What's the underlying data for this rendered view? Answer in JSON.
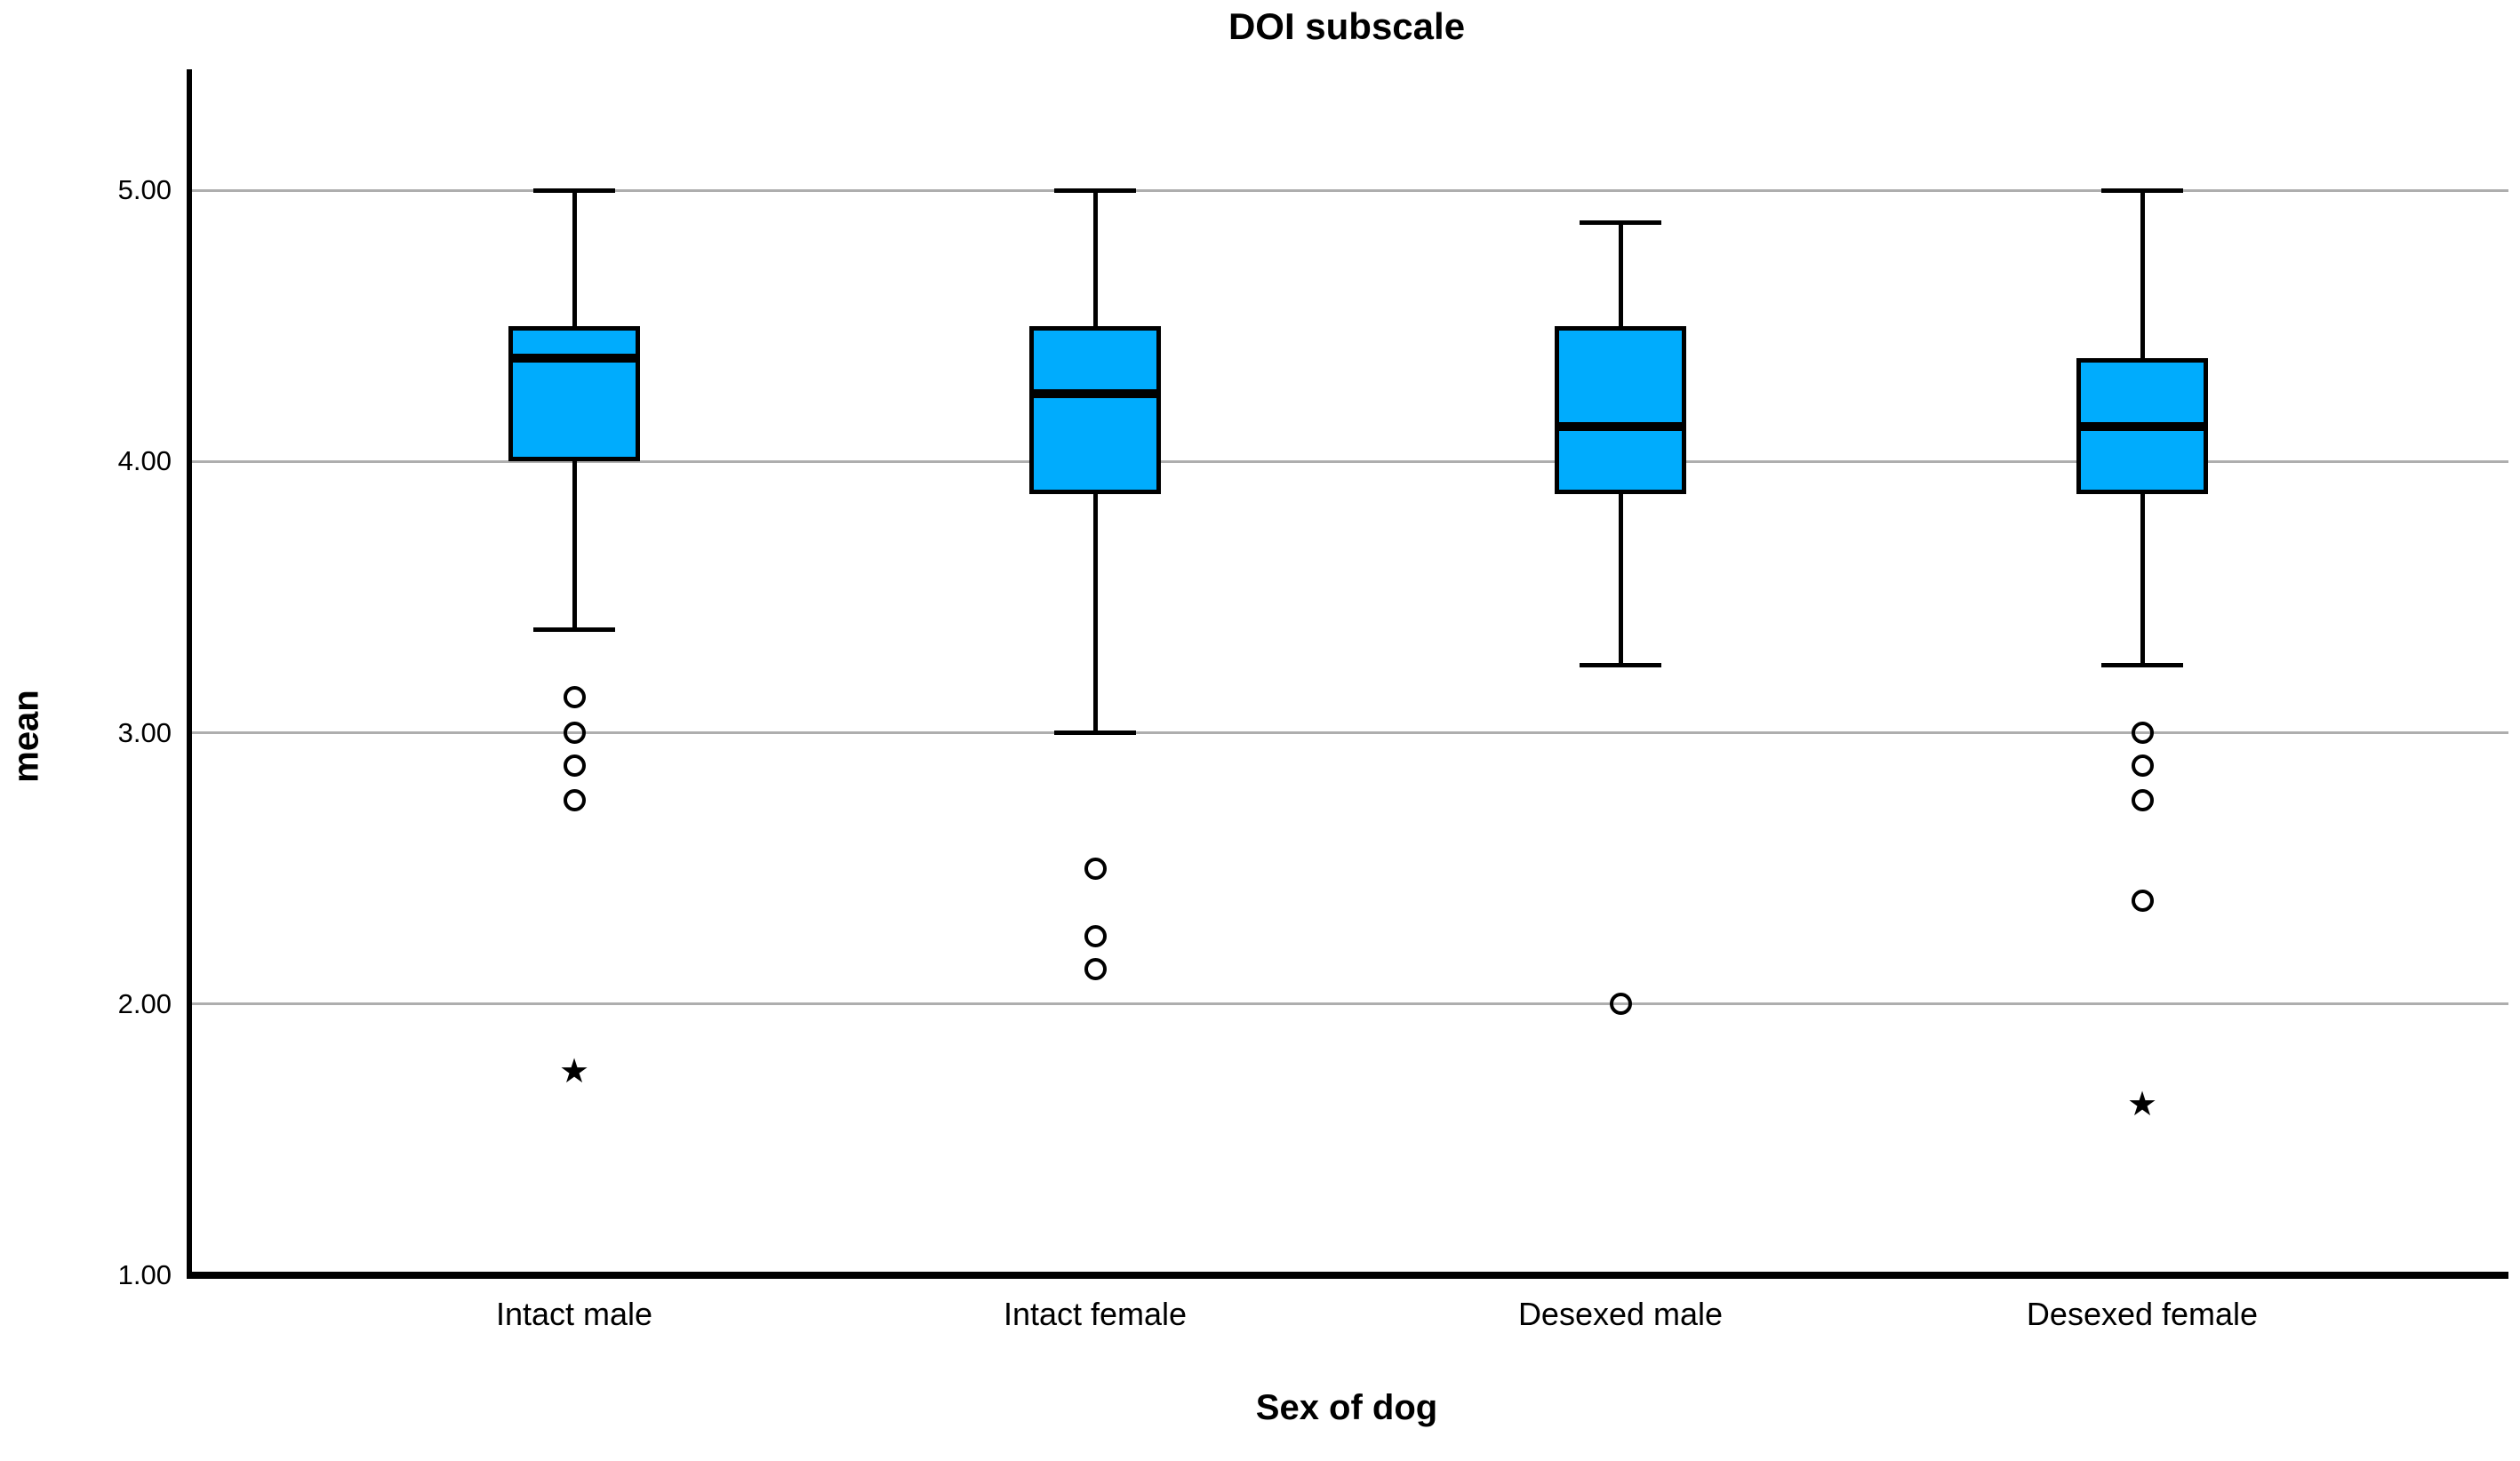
{
  "title": "DOI subscale",
  "y_axis": {
    "label": "mean",
    "tick_labels": [
      "5.00",
      "4.00",
      "3.00",
      "2.00",
      "1.00"
    ]
  },
  "x_axis": {
    "label": "Sex of dog"
  },
  "chart_data": {
    "type": "boxplot",
    "title": "DOI subscale",
    "xlabel": "Sex of dog",
    "ylabel": "mean",
    "ylim": [
      1.0,
      5.0
    ],
    "ytick_values": [
      5.0,
      4.0,
      3.0,
      2.0,
      1.0
    ],
    "ytick_labels": [
      "5.00",
      "4.00",
      "3.00",
      "2.00",
      "1.00"
    ],
    "grid": "horizontal gray gridlines at each y tick, behind boxes",
    "legend": "none",
    "categories": [
      "Intact male",
      "Intact female",
      "Desexed male",
      "Desexed female"
    ],
    "series": [
      {
        "category": "Intact male",
        "whisker_low": 3.38,
        "q1": 4.0,
        "median": 4.38,
        "q3": 4.5,
        "whisker_high": 5.0,
        "outliers": [
          3.13,
          3.0,
          2.88,
          2.75
        ],
        "extremes": [
          1.75
        ]
      },
      {
        "category": "Intact female",
        "whisker_low": 3.0,
        "q1": 3.88,
        "median": 4.25,
        "q3": 4.5,
        "whisker_high": 5.0,
        "outliers": [
          2.5,
          2.25,
          2.13
        ],
        "extremes": []
      },
      {
        "category": "Desexed male",
        "whisker_low": 3.25,
        "q1": 3.88,
        "median": 4.13,
        "q3": 4.5,
        "whisker_high": 4.88,
        "outliers": [
          2.0
        ],
        "extremes": []
      },
      {
        "category": "Desexed female",
        "whisker_low": 3.25,
        "q1": 3.88,
        "median": 4.13,
        "q3": 4.38,
        "whisker_high": 5.0,
        "outliers": [
          3.0,
          2.88,
          2.75,
          2.38
        ],
        "extremes": [
          1.63
        ]
      }
    ],
    "markers": {
      "outlier": "circle",
      "extreme": "star"
    },
    "colors": {
      "box_fill": "#00ACFD",
      "line": "#000000",
      "gridline": "#AEAEAE",
      "background": "#FFFFFF"
    }
  }
}
